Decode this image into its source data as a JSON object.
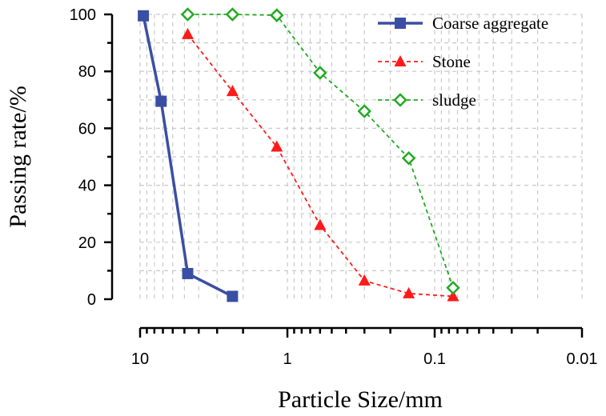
{
  "chart_data": {
    "type": "line",
    "title": "",
    "xlabel": "Particle Size/mm",
    "ylabel": "Passing rate/%",
    "xscale": "log",
    "xaxis_reversed": true,
    "xlim": [
      10,
      0.01
    ],
    "ylim": [
      0,
      100
    ],
    "xticks": [
      10,
      1,
      0.1,
      0.01
    ],
    "xtick_labels": [
      "10",
      "1",
      "0.1",
      "0.01"
    ],
    "yticks": [
      0,
      20,
      40,
      60,
      80,
      100
    ],
    "ytick_labels": [
      "0",
      "20",
      "40",
      "60",
      "80",
      "100"
    ],
    "grid": true,
    "legend_position": "top-right",
    "series": [
      {
        "name": "Coarse aggregate",
        "color": "#3a4fa3",
        "marker": "square",
        "line": "solid",
        "x": [
          9.5,
          7.2,
          4.75,
          2.36
        ],
        "y": [
          99.5,
          69.5,
          9,
          1
        ]
      },
      {
        "name": "Stone",
        "color": "#ff1a1a",
        "marker": "triangle",
        "line": "dashed",
        "x": [
          4.75,
          2.36,
          1.18,
          0.6,
          0.3,
          0.15,
          0.075
        ],
        "y": [
          93,
          73,
          53.5,
          26,
          6.5,
          2,
          1
        ]
      },
      {
        "name": "sludge",
        "color": "#22aa22",
        "marker": "diamond-open",
        "line": "dashed",
        "x": [
          4.75,
          2.36,
          1.18,
          0.6,
          0.3,
          0.15,
          0.075
        ],
        "y": [
          100,
          100,
          99.7,
          79.5,
          66,
          49.5,
          4
        ]
      }
    ]
  }
}
